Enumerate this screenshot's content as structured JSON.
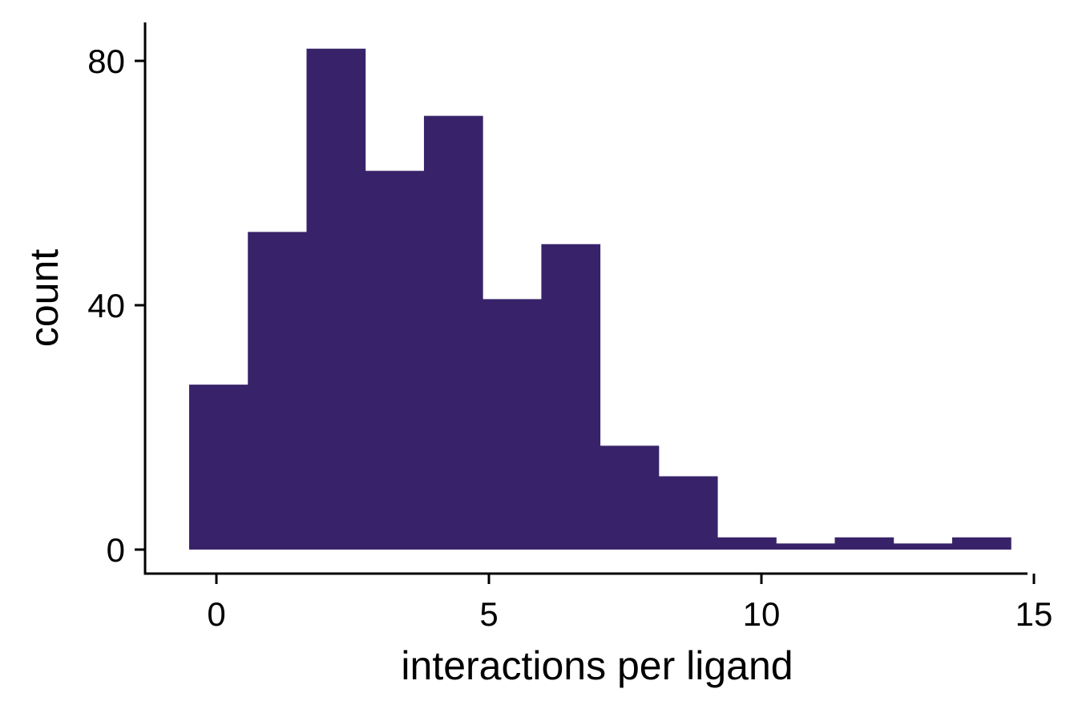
{
  "chart_data": {
    "type": "bar",
    "subtype": "histogram",
    "title": "",
    "xlabel": "interactions per ligand",
    "ylabel": "count",
    "bin_width": 1.0769,
    "bins": [
      {
        "x0": -0.5,
        "x1": 0.577,
        "count": 27
      },
      {
        "x0": 0.577,
        "x1": 1.654,
        "count": 52
      },
      {
        "x0": 1.654,
        "x1": 2.731,
        "count": 82
      },
      {
        "x0": 2.731,
        "x1": 3.808,
        "count": 62
      },
      {
        "x0": 3.808,
        "x1": 4.885,
        "count": 71
      },
      {
        "x0": 4.885,
        "x1": 5.962,
        "count": 41
      },
      {
        "x0": 5.962,
        "x1": 7.038,
        "count": 50
      },
      {
        "x0": 7.038,
        "x1": 8.115,
        "count": 17
      },
      {
        "x0": 8.115,
        "x1": 9.192,
        "count": 12
      },
      {
        "x0": 9.192,
        "x1": 10.269,
        "count": 2
      },
      {
        "x0": 10.269,
        "x1": 11.346,
        "count": 1
      },
      {
        "x0": 11.346,
        "x1": 12.423,
        "count": 2
      },
      {
        "x0": 12.423,
        "x1": 13.5,
        "count": 1
      },
      {
        "x0": 13.5,
        "x1": 14.577,
        "count": 2
      }
    ],
    "xlim": [
      -1.3,
      15.0
    ],
    "ylim": [
      -4,
      86
    ],
    "xticks": [
      0,
      5,
      10,
      15
    ],
    "xtick_labels": [
      "0",
      "5",
      "10",
      "15"
    ],
    "yticks": [
      0,
      40,
      80
    ],
    "ytick_labels": [
      "0",
      "40",
      "80"
    ],
    "bar_color": "#38236a",
    "grid": false,
    "legend": "none"
  }
}
